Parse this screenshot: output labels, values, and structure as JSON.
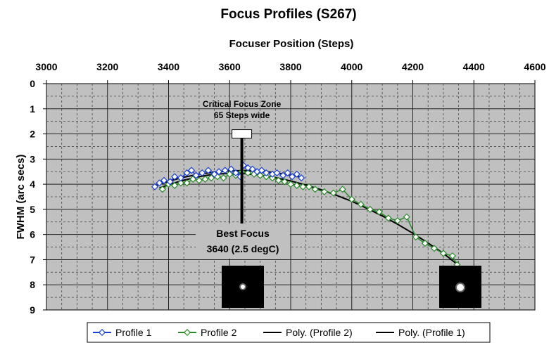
{
  "chart_data": {
    "type": "line",
    "title": "Focus Profiles (S267)",
    "xlabel": "Focuser Position (Steps)",
    "ylabel": "FWHM (arc secs)",
    "xlim": [
      3000,
      4600
    ],
    "ylim": [
      0,
      9
    ],
    "y_inverted": true,
    "x_axis_position": "top",
    "x_ticks": [
      "3000",
      "3200",
      "3400",
      "3600",
      "3800",
      "4000",
      "4200",
      "4400",
      "4600"
    ],
    "y_ticks": [
      "0",
      "1",
      "2",
      "3",
      "4",
      "5",
      "6",
      "7",
      "8",
      "9"
    ],
    "grid": true,
    "plot_background": "#c0c0c0",
    "series": [
      {
        "name": "Profile 1",
        "color": "#1a3fd1",
        "marker": "diamond",
        "x": [
          3355,
          3370,
          3385,
          3405,
          3420,
          3440,
          3460,
          3475,
          3490,
          3510,
          3530,
          3550,
          3565,
          3585,
          3605,
          3620,
          3635,
          3645,
          3660,
          3675,
          3690,
          3705,
          3720,
          3740,
          3755,
          3775,
          3790,
          3805,
          3820,
          3835
        ],
        "y": [
          4.1,
          3.95,
          3.85,
          3.9,
          3.7,
          3.75,
          3.55,
          3.45,
          3.65,
          3.55,
          3.45,
          3.6,
          3.5,
          3.45,
          3.4,
          3.55,
          3.7,
          3.25,
          3.35,
          3.4,
          3.5,
          3.45,
          3.55,
          3.6,
          3.55,
          3.65,
          3.55,
          3.7,
          3.6,
          3.75
        ]
      },
      {
        "name": "Profile 2",
        "color": "#2a8a2a",
        "marker": "diamond",
        "x": [
          3380,
          3400,
          3420,
          3440,
          3460,
          3480,
          3500,
          3520,
          3540,
          3560,
          3580,
          3600,
          3620,
          3640,
          3660,
          3680,
          3700,
          3720,
          3740,
          3760,
          3780,
          3800,
          3820,
          3840,
          3860,
          3880,
          3910,
          3940,
          3970,
          4000,
          4030,
          4060,
          4090,
          4120,
          4150,
          4180,
          4210,
          4240,
          4270,
          4300,
          4330,
          4345
        ],
        "y": [
          4.2,
          4.0,
          4.05,
          3.95,
          3.95,
          3.8,
          3.85,
          3.8,
          3.75,
          3.7,
          3.75,
          3.6,
          3.65,
          3.5,
          3.55,
          3.6,
          3.65,
          3.7,
          3.75,
          3.85,
          3.9,
          4.0,
          4.05,
          4.1,
          4.1,
          4.2,
          4.3,
          4.35,
          4.2,
          4.6,
          4.8,
          5.0,
          5.1,
          5.35,
          5.45,
          5.3,
          6.1,
          6.35,
          6.55,
          6.75,
          6.85,
          7.2
        ]
      },
      {
        "name": "Poly. (Profile 2)",
        "color": "#000000",
        "marker": "none",
        "x": [
          3370,
          3400,
          3450,
          3500,
          3550,
          3600,
          3650,
          3700,
          3750,
          3800,
          3850,
          3900,
          3950,
          4000,
          4050,
          4100,
          4150,
          4200,
          4250,
          4300,
          4345
        ],
        "y": [
          4.15,
          4.02,
          3.84,
          3.7,
          3.6,
          3.57,
          3.58,
          3.64,
          3.74,
          3.87,
          4.03,
          4.22,
          4.44,
          4.68,
          4.96,
          5.26,
          5.59,
          5.95,
          6.34,
          6.75,
          7.18
        ]
      },
      {
        "name": "Poly. (Profile 1)",
        "color": "#000000",
        "marker": "none",
        "x": [
          3360,
          3400,
          3450,
          3500,
          3550,
          3600,
          3640,
          3680,
          3720,
          3760,
          3800,
          3840
        ],
        "y": [
          4.05,
          3.88,
          3.72,
          3.6,
          3.52,
          3.47,
          3.46,
          3.47,
          3.5,
          3.56,
          3.64,
          3.74
        ]
      }
    ],
    "annotations": {
      "critical_zone_line1": "Critical Focus Zone",
      "critical_zone_line2": "65 Steps wide",
      "critical_zone_x": 3640,
      "critical_zone_y": 2.0,
      "best_focus_line1": "Best Focus",
      "best_focus_line2": "3640 (2.5 degC)",
      "best_focus_x": 3640
    },
    "legend": {
      "placement": "bottom",
      "entries": [
        "Profile 1",
        "Profile 2",
        "Poly. (Profile 2)",
        "Poly. (Profile 1)"
      ]
    }
  }
}
